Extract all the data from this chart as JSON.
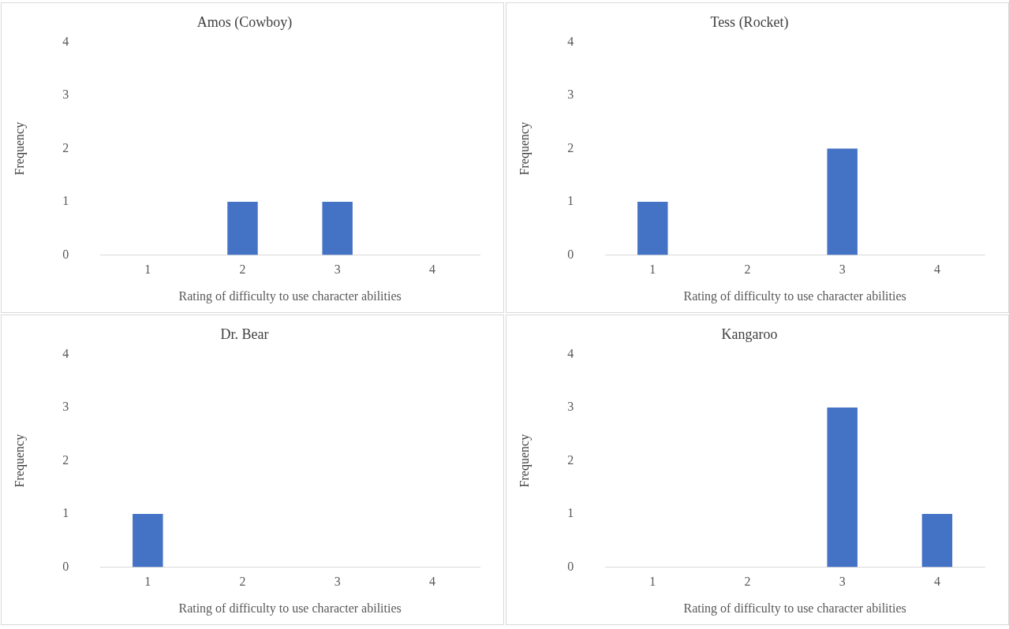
{
  "chart_data": [
    {
      "type": "bar",
      "title": "Amos (Cowboy)",
      "xlabel": "Rating of difficulty to use character abilities",
      "ylabel": "Frequency",
      "categories": [
        "1",
        "2",
        "3",
        "4"
      ],
      "values": [
        0,
        1,
        1,
        0
      ],
      "color": "#4472c4",
      "ylim": [
        0,
        4
      ],
      "yticks": [
        0,
        1,
        2,
        3,
        4
      ],
      "grid": false
    },
    {
      "type": "bar",
      "title": "Tess (Rocket)",
      "xlabel": "Rating of difficulty to use character abilities",
      "ylabel": "Frequency",
      "categories": [
        "1",
        "2",
        "3",
        "4"
      ],
      "values": [
        1,
        0,
        2,
        0
      ],
      "color": "#4472c4",
      "ylim": [
        0,
        4
      ],
      "yticks": [
        0,
        1,
        2,
        3,
        4
      ],
      "grid": false
    },
    {
      "type": "bar",
      "title": "Dr. Bear",
      "xlabel": "Rating of difficulty to use character abilities",
      "ylabel": "Frequency",
      "categories": [
        "1",
        "2",
        "3",
        "4"
      ],
      "values": [
        1,
        0,
        0,
        0
      ],
      "color": "#4472c4",
      "ylim": [
        0,
        4
      ],
      "yticks": [
        0,
        1,
        2,
        3,
        4
      ],
      "grid": false
    },
    {
      "type": "bar",
      "title": "Kangaroo",
      "xlabel": "Rating of difficulty to use character abilities",
      "ylabel": "Frequency",
      "categories": [
        "1",
        "2",
        "3",
        "4"
      ],
      "values": [
        0,
        0,
        3,
        1
      ],
      "color": "#4472c4",
      "ylim": [
        0,
        4
      ],
      "yticks": [
        0,
        1,
        2,
        3,
        4
      ],
      "grid": false
    }
  ]
}
